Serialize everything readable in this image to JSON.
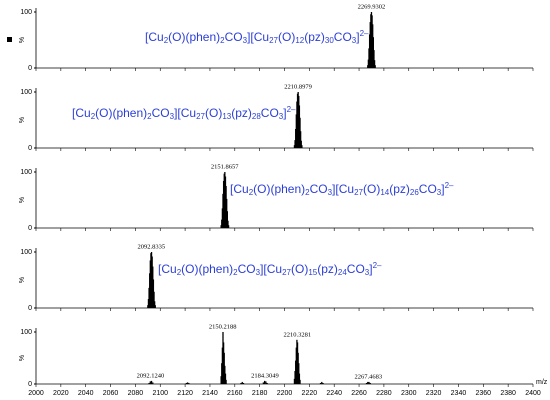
{
  "chart_data": [
    {
      "type": "spectrum",
      "formula": "[Cu2(O)(phen)2CO3][Cu27(O)12(pz)30CO3]2–",
      "y_label": "%",
      "x": [
        2267,
        2267.5,
        2268,
        2268.5,
        2269,
        2269.5,
        2270,
        2270.5,
        2271,
        2271.5,
        2272,
        2272.5,
        2273
      ],
      "values": [
        5,
        15,
        35,
        60,
        82,
        96,
        100,
        94,
        78,
        55,
        32,
        14,
        5
      ],
      "ylim": [
        0,
        100
      ],
      "yticks": [
        0,
        100
      ],
      "color": "#000000",
      "peak_labels": [
        {
          "value": 2269.9302,
          "label": "2269.9302"
        }
      ]
    },
    {
      "type": "spectrum",
      "formula": "[Cu2(O)(phen)2CO3][Cu27(O)13(pz)28CO3]2–",
      "y_label": "%",
      "x": [
        2208,
        2208.5,
        2209,
        2209.5,
        2210,
        2210.5,
        2211,
        2211.5,
        2212,
        2212.5,
        2213,
        2213.5,
        2214
      ],
      "values": [
        5,
        14,
        34,
        60,
        83,
        97,
        100,
        93,
        76,
        54,
        30,
        13,
        5
      ],
      "ylim": [
        0,
        100
      ],
      "yticks": [
        0,
        100
      ],
      "color": "#000000",
      "peak_labels": [
        {
          "value": 2210.8979,
          "label": "2210.8979"
        }
      ]
    },
    {
      "type": "spectrum",
      "formula": "[Cu2(O)(phen)2CO3][Cu27(O)14(pz)26CO3]2–",
      "y_label": "%",
      "x": [
        2149,
        2149.5,
        2150,
        2150.5,
        2151,
        2151.5,
        2152,
        2152.5,
        2153,
        2153.5,
        2154,
        2154.5,
        2155
      ],
      "values": [
        5,
        15,
        35,
        61,
        84,
        97,
        100,
        92,
        75,
        52,
        30,
        13,
        5
      ],
      "ylim": [
        0,
        100
      ],
      "yticks": [
        0,
        100
      ],
      "color": "#000000",
      "peak_labels": [
        {
          "value": 2151.8657,
          "label": "2151.8657"
        }
      ]
    },
    {
      "type": "spectrum",
      "formula": "[Cu2(O)(phen)2CO3][Cu27(O)15(pz)24CO3]2–",
      "y_label": "%",
      "x": [
        2090,
        2090.5,
        2091,
        2091.5,
        2092,
        2092.5,
        2093,
        2093.5,
        2094,
        2094.5,
        2095,
        2095.5,
        2096
      ],
      "values": [
        5,
        16,
        36,
        62,
        85,
        98,
        100,
        92,
        74,
        51,
        29,
        12,
        5
      ],
      "ylim": [
        0,
        100
      ],
      "yticks": [
        0,
        100
      ],
      "color": "#000000",
      "peak_labels": [
        {
          "value": 2092.8335,
          "label": "2092.8335"
        }
      ]
    },
    {
      "type": "spectrum",
      "y_label": "%",
      "x_label": "m/z",
      "x": [
        2091,
        2092,
        2093,
        2094,
        2121,
        2122,
        2123,
        2149,
        2149.5,
        2150,
        2150.5,
        2151,
        2151.5,
        2152,
        2152.5,
        2153,
        2165,
        2166,
        2167,
        2183,
        2184,
        2185,
        2186,
        2208,
        2208.5,
        2209,
        2209.5,
        2210,
        2210.5,
        2211,
        2211.5,
        2212,
        2212.5,
        2229,
        2230,
        2231,
        2266,
        2267,
        2268,
        2269
      ],
      "values": [
        2,
        5,
        6,
        3,
        2,
        3,
        2,
        15,
        40,
        70,
        100,
        80,
        60,
        35,
        20,
        8,
        2,
        4,
        2,
        3,
        6,
        5,
        2,
        10,
        25,
        45,
        70,
        85,
        80,
        60,
        40,
        20,
        8,
        2,
        4,
        2,
        2,
        4,
        4,
        2
      ],
      "ylim": [
        0,
        100
      ],
      "yticks": [
        0,
        100
      ],
      "color": "#000000",
      "xlim": [
        2000,
        2400
      ],
      "xticks": [
        2000,
        2020,
        2040,
        2060,
        2080,
        2100,
        2120,
        2140,
        2160,
        2180,
        2200,
        2220,
        2240,
        2260,
        2280,
        2300,
        2320,
        2340,
        2360,
        2380,
        2400
      ],
      "peak_labels": [
        {
          "value": 2092.124,
          "label": "2092.1240"
        },
        {
          "value": 2150.2188,
          "label": "2150.2188"
        },
        {
          "value": 2184.3049,
          "label": "2184.3049"
        },
        {
          "value": 2210.3281,
          "label": "2210.3281"
        },
        {
          "value": 2267.4683,
          "label": "2267.4683"
        }
      ]
    }
  ]
}
